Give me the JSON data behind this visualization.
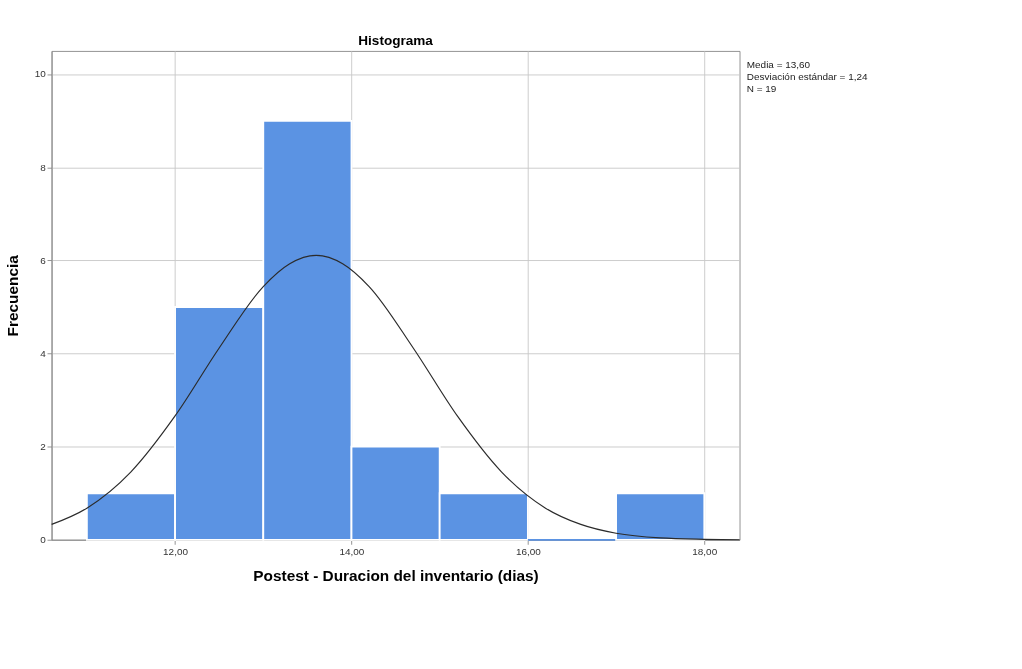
{
  "chart_data": {
    "type": "histogram",
    "title": "Histograma",
    "xlabel": "Postest - Duracion del inventario (dias)",
    "ylabel": "Frecuencia",
    "bins": [
      11,
      12,
      13,
      14,
      15,
      16,
      17,
      18
    ],
    "values": [
      1,
      5,
      9,
      2,
      1,
      0,
      1
    ],
    "color": "#5b93e3",
    "series": [
      {
        "type": "line",
        "color": "#2b2b2b",
        "x": [
          10.6,
          11,
          11.5,
          12,
          12.5,
          13,
          13.3,
          13.6,
          13.9,
          14.2,
          14.7,
          15.2,
          15.7,
          16.2,
          16.6,
          17,
          17.5,
          18,
          18.4
        ],
        "values": [
          0.33,
          0.68,
          1.46,
          2.66,
          4.12,
          5.44,
          5.93,
          6.11,
          5.93,
          5.44,
          4.12,
          2.66,
          1.46,
          0.68,
          0.33,
          0.14,
          0.04,
          0.01,
          0.0
        ]
      }
    ],
    "xlim": [
      10.6,
      18.4
    ],
    "ylim": [
      0,
      10.5
    ],
    "xticks": [
      {
        "value": 12,
        "label": "12,00"
      },
      {
        "value": 14,
        "label": "14,00"
      },
      {
        "value": 16,
        "label": "16,00"
      },
      {
        "value": 18,
        "label": "18,00"
      }
    ],
    "yticks": [
      0,
      2,
      4,
      6,
      8,
      10
    ],
    "grid": true,
    "annotations": [
      "Media = 13,60",
      "Desviación estándar = 1,24",
      "N = 19"
    ]
  }
}
